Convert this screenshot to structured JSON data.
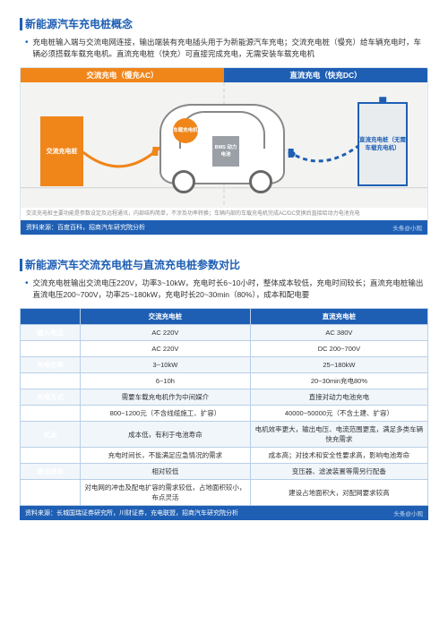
{
  "section1": {
    "title": "新能源汽车充电桩概念",
    "bullet": "充电桩输入端与交流电网连接，输出端装有充电插头用于为新能源汽车充电；交流充电桩（慢充）给车辆充电时，车辆必须搭载车载充电机。直流充电桩（快充）可直接完成充电，无需安装车载充电机",
    "diagram": {
      "ac_header": "交流充电（慢充AC）",
      "dc_header": "直流充电（快充DC）",
      "ac_station_label": "交流充电桩",
      "dc_station_label": "直流充电桩（无需车载充电机）",
      "obc_label": "车载充电机",
      "bms_label": "BMS\n动力\n电池",
      "note": "交流充电桩主要功能是参数设定及远程通讯，内部结构简单，不涉及功率转换；车辆内部的车载充电机完成AC/DC变换后直接给动力电池充电",
      "source": "资料来源：百度百科，招商汽车研究院分析"
    },
    "colors": {
      "ac": "#f08519",
      "dc": "#1e5fb4",
      "bg": "#f3f3f2",
      "car_outline": "#888888",
      "bms": "#9aa0a5"
    }
  },
  "section2": {
    "title": "新能源汽车交流充电桩与直流充电桩参数对比",
    "bullet": "交流充电桩输出交流电压220V，功率3~10kW，充电时长6~10小时，整体成本较低，充电时间较长；直流充电桩输出直流电压200~700V，功率25~180kW，充电时长20~30min（80%），成本和配电要",
    "table": {
      "head": [
        "",
        "交流充电桩",
        "直流充电桩"
      ],
      "rows": [
        {
          "label": "输入电压",
          "ac": "AC 220V",
          "dc": "AC 380V"
        },
        {
          "label": "输出电压",
          "ac": "AC 220V",
          "dc": "DC 200~700V"
        },
        {
          "label": "充电功率",
          "ac": "3~10kW",
          "dc": "25~180kW"
        },
        {
          "label": "充电时间",
          "ac": "6~10h",
          "dc": "20~30min充电80%"
        },
        {
          "label": "充电方式",
          "ac": "需要车载充电机作为中间媒介",
          "dc": "直接对动力电池充电"
        },
        {
          "label": "成本",
          "ac": "800~1200元（不含线缆施工、扩容）",
          "dc": "40000~50000元（不含土建、扩容）"
        },
        {
          "label": "优点",
          "ac": "成本低，有利于电池寿命",
          "dc": "电机效率更大，输出电压、电流范围更宽，满足多类车辆快充需求"
        },
        {
          "label": "缺点",
          "ac": "充电时间长，不能满足应急情况的需求",
          "dc": "成本高；对技术和安全性要求高，影响电池寿命"
        },
        {
          "label": "建设成本",
          "ac": "相对较低",
          "dc": "变压器、滤波装置等需另行配备"
        },
        {
          "label": "特征",
          "ac": "对电网的冲击及配电扩容的需求较低，占地面积较小，布点灵活",
          "dc": "建设占地面积大，对配网要求较高"
        }
      ]
    },
    "source": "资料来源：长城国瑞证券研究所，川财证券，充电联盟，招商汽车研究院分析"
  },
  "watermark": "头条@小观",
  "style": {
    "primary": "#1e5fb4",
    "accent": "#f08519",
    "text": "#333333",
    "border": "#b9cfe6",
    "row_alt_bg": "#f1f6fb",
    "fontsize_title": 12,
    "fontsize_body": 8.5,
    "fontsize_table": 7.5
  }
}
